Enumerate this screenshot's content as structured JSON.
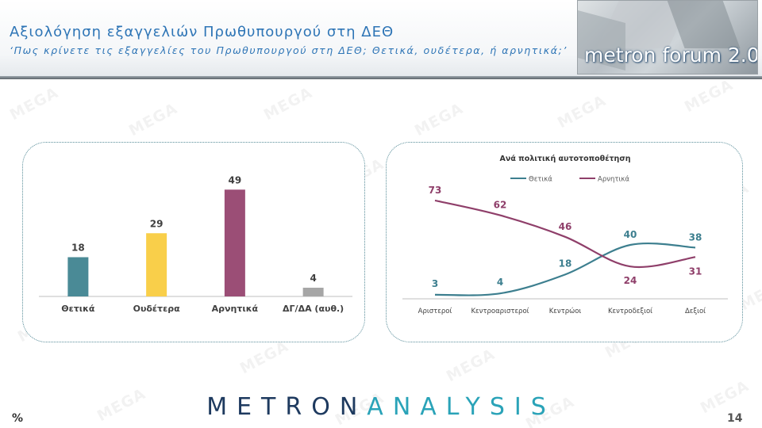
{
  "header": {
    "title": "Αξιολόγηση εξαγγελιών Πρωθυπουργού στη ΔΕΘ",
    "subtitle": "‘Πως κρίνετε τις εξαγγελίες του Πρωθυπουργού στη ΔΕΘ; Θετικά, ουδέτερα, ή αρνητικά;’"
  },
  "forum_logo": {
    "text": "metron forum 2.0"
  },
  "watermark": {
    "text": "MEGA"
  },
  "footer": {
    "brand_part1": "METRON",
    "brand_part2": "ANALYSIS",
    "percent_label": "%",
    "page_number": "14"
  },
  "colors": {
    "title": "#2e75b6",
    "bar_positive": "#4a8a96",
    "bar_neutral": "#f9cf4a",
    "bar_negative": "#9b4e76",
    "bar_dk": "#a6a6a6",
    "line_positive": "#3d7f8f",
    "line_negative": "#8f3f6a"
  },
  "chart_data": [
    {
      "type": "bar",
      "categories": [
        "Θετικά",
        "Ουδέτερα",
        "Αρνητικά",
        "ΔΓ/ΔΑ (αυθ.)"
      ],
      "values": [
        18,
        29,
        49,
        4
      ],
      "ylim": [
        0,
        60
      ]
    },
    {
      "type": "line",
      "title": "Ανά πολιτική αυτοτοποθέτηση",
      "categories": [
        "Αριστεροί",
        "Κεντροαριστεροί",
        "Κεντρώοι",
        "Κεντροδεξιοί",
        "Δεξιοί"
      ],
      "series": [
        {
          "name": "Θετικά",
          "values": [
            3,
            4,
            18,
            40,
            38
          ]
        },
        {
          "name": "Αρνητικά",
          "values": [
            73,
            62,
            46,
            24,
            31
          ]
        }
      ],
      "legend": "top-center",
      "ylim": [
        0,
        80
      ]
    }
  ]
}
